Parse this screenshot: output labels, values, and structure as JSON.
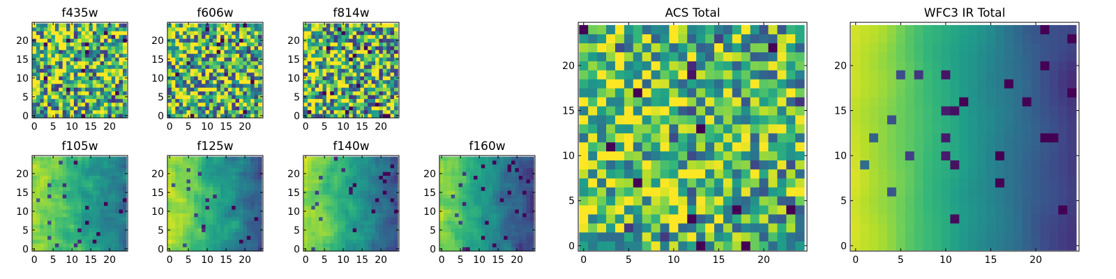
{
  "chart_data": [
    {
      "type": "heatmap",
      "title": "f435w",
      "grid_size": 25,
      "xlim": [
        0,
        24
      ],
      "ylim": [
        0,
        24
      ],
      "xticks": [
        "0",
        "5",
        "10",
        "15",
        "20"
      ],
      "yticks": [
        "0",
        "5",
        "10",
        "15",
        "20"
      ],
      "colormap": "viridis",
      "pattern": "speckled",
      "gradient": 0.0,
      "noise": 0.75,
      "mean": 0.68,
      "seed": 11
    },
    {
      "type": "heatmap",
      "title": "f606w",
      "grid_size": 25,
      "xlim": [
        0,
        24
      ],
      "ylim": [
        0,
        24
      ],
      "xticks": [
        "0",
        "5",
        "10",
        "15",
        "20"
      ],
      "yticks": [
        "0",
        "5",
        "10",
        "15",
        "20"
      ],
      "colormap": "viridis",
      "pattern": "speckled",
      "gradient": 0.05,
      "noise": 0.75,
      "mean": 0.68,
      "seed": 23
    },
    {
      "type": "heatmap",
      "title": "f814w",
      "grid_size": 25,
      "xlim": [
        0,
        24
      ],
      "ylim": [
        0,
        24
      ],
      "xticks": [
        "0",
        "5",
        "10",
        "15",
        "20"
      ],
      "yticks": [
        "0",
        "5",
        "10",
        "15",
        "20"
      ],
      "colormap": "viridis",
      "pattern": "speckled",
      "gradient": 0.08,
      "noise": 0.75,
      "mean": 0.66,
      "seed": 37
    },
    {
      "type": "heatmap",
      "title": "f105w",
      "grid_size": 25,
      "xlim": [
        0,
        24
      ],
      "ylim": [
        0,
        24
      ],
      "xticks": [
        "0",
        "5",
        "10",
        "15",
        "20"
      ],
      "yticks": [
        "0",
        "5",
        "10",
        "15",
        "20"
      ],
      "colormap": "viridis",
      "pattern": "left-bright gradient",
      "gradient": 0.45,
      "noise": 0.35,
      "mean": 0.62,
      "seed": 41
    },
    {
      "type": "heatmap",
      "title": "f125w",
      "grid_size": 25,
      "xlim": [
        0,
        24
      ],
      "ylim": [
        0,
        24
      ],
      "xticks": [
        "0",
        "5",
        "10",
        "15",
        "20"
      ],
      "yticks": [
        "0",
        "5",
        "10",
        "15",
        "20"
      ],
      "colormap": "viridis",
      "pattern": "left-bright gradient",
      "gradient": 0.5,
      "noise": 0.32,
      "mean": 0.6,
      "seed": 53
    },
    {
      "type": "heatmap",
      "title": "f140w",
      "grid_size": 25,
      "xlim": [
        0,
        24
      ],
      "ylim": [
        0,
        24
      ],
      "xticks": [
        "0",
        "5",
        "10",
        "15",
        "20"
      ],
      "yticks": [
        "0",
        "5",
        "10",
        "15",
        "20"
      ],
      "colormap": "viridis",
      "pattern": "left-bright gradient",
      "gradient": 0.55,
      "noise": 0.3,
      "mean": 0.58,
      "seed": 67
    },
    {
      "type": "heatmap",
      "title": "f160w",
      "grid_size": 25,
      "xlim": [
        0,
        24
      ],
      "ylim": [
        0,
        24
      ],
      "xticks": [
        "0",
        "5",
        "10",
        "15",
        "20"
      ],
      "yticks": [
        "0",
        "5",
        "10",
        "15",
        "20"
      ],
      "colormap": "viridis",
      "pattern": "left-bright gradient",
      "gradient": 0.6,
      "noise": 0.3,
      "mean": 0.52,
      "seed": 79
    },
    {
      "type": "heatmap",
      "title": "ACS Total",
      "grid_size": 25,
      "xlim": [
        0,
        24
      ],
      "ylim": [
        0,
        24
      ],
      "xticks": [
        "0",
        "5",
        "10",
        "15",
        "20"
      ],
      "yticks": [
        "0",
        "5",
        "10",
        "15",
        "20"
      ],
      "colormap": "viridis",
      "pattern": "speckled",
      "gradient": 0.12,
      "noise": 0.55,
      "mean": 0.68,
      "seed": 97
    },
    {
      "type": "heatmap",
      "title": "WFC3 IR Total",
      "grid_size": 25,
      "xlim": [
        0,
        24
      ],
      "ylim": [
        0,
        24
      ],
      "xticks": [
        "0",
        "5",
        "10",
        "15",
        "20"
      ],
      "yticks": [
        "0",
        "5",
        "10",
        "15",
        "20"
      ],
      "colormap": "viridis",
      "pattern": "left-bright smooth gradient",
      "gradient": 0.7,
      "noise": 0.18,
      "mean": 0.55,
      "seed": 113
    }
  ]
}
